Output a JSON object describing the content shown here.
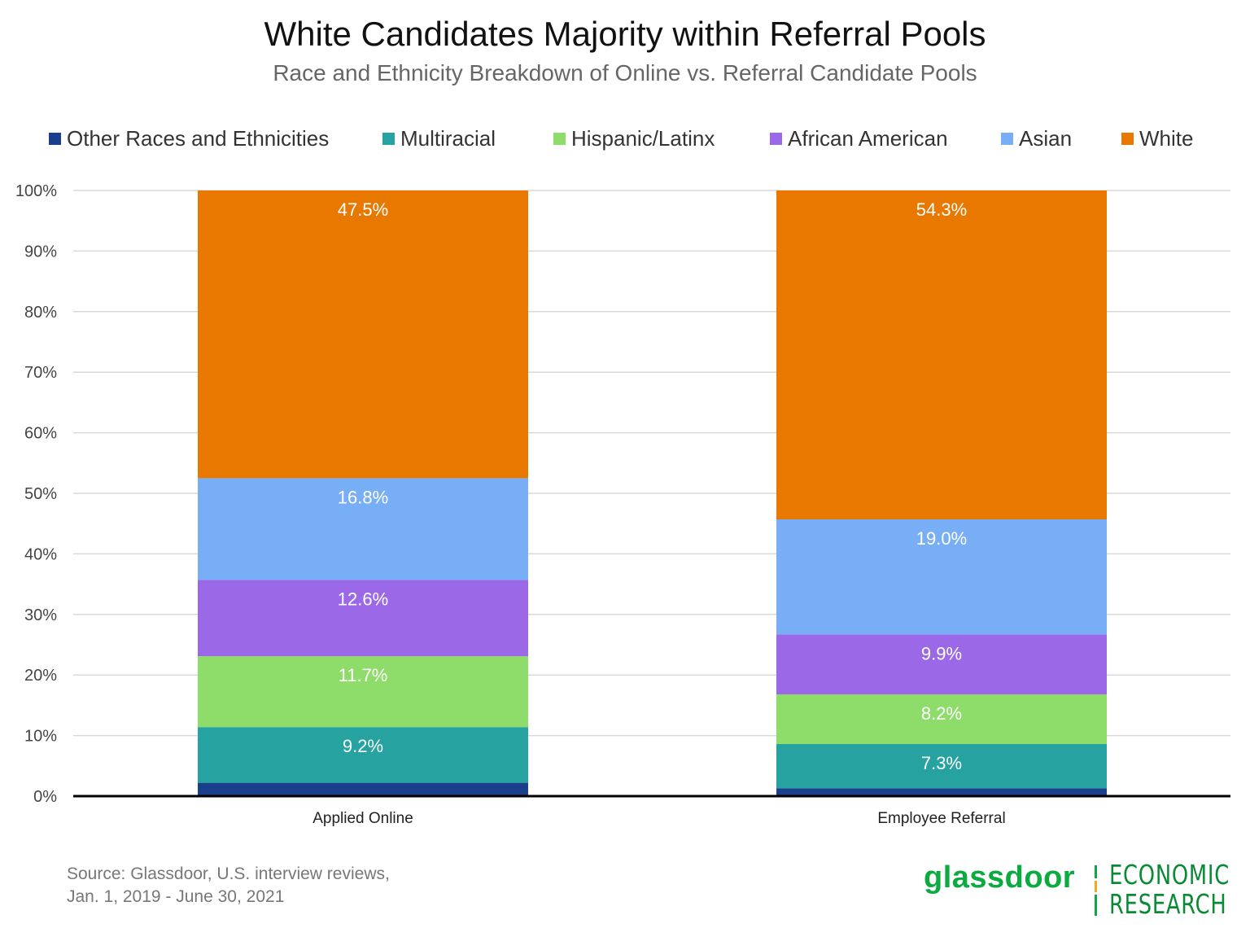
{
  "chart_data": {
    "type": "bar",
    "stacked": true,
    "title": "White Candidates Majority within Referral Pools",
    "subtitle": "Race and Ethnicity  Breakdown of Online vs. Referral Candidate Pools",
    "categories": [
      "Applied Online",
      "Employee Referral"
    ],
    "ylim": [
      0,
      100
    ],
    "yticks": [
      "0%",
      "10%",
      "20%",
      "30%",
      "40%",
      "50%",
      "60%",
      "70%",
      "80%",
      "90%",
      "100%"
    ],
    "grid": true,
    "legend_position": "top",
    "series": [
      {
        "name": "Other Races and Ethnicities",
        "color": "#1a3f8c",
        "values": [
          2.2,
          1.3
        ],
        "labels": [
          "",
          ""
        ]
      },
      {
        "name": "Multiracial",
        "color": "#26a3a0",
        "values": [
          9.2,
          7.3
        ],
        "labels": [
          "9.2%",
          "7.3%"
        ]
      },
      {
        "name": "Hispanic/Latinx",
        "color": "#8edc6a",
        "values": [
          11.7,
          8.2
        ],
        "labels": [
          "11.7%",
          "8.2%"
        ]
      },
      {
        "name": "African American",
        "color": "#9b69e8",
        "values": [
          12.6,
          9.9
        ],
        "labels": [
          "12.6%",
          "9.9%"
        ]
      },
      {
        "name": "Asian",
        "color": "#78aef5",
        "values": [
          16.8,
          19.0
        ],
        "labels": [
          "16.8%",
          "19.0%"
        ]
      },
      {
        "name": "White",
        "color": "#e87800",
        "values": [
          47.5,
          54.3
        ],
        "labels": [
          "47.5%",
          "54.3%"
        ]
      }
    ]
  },
  "source": {
    "line1": "Source: Glassdoor, U.S. interview reviews,",
    "line2": "Jan. 1, 2019 - June 30, 2021"
  },
  "logo": {
    "brand": "glassdoor",
    "econ_line1": "ECONOMIC",
    "econ_line2": "RESEARCH"
  }
}
